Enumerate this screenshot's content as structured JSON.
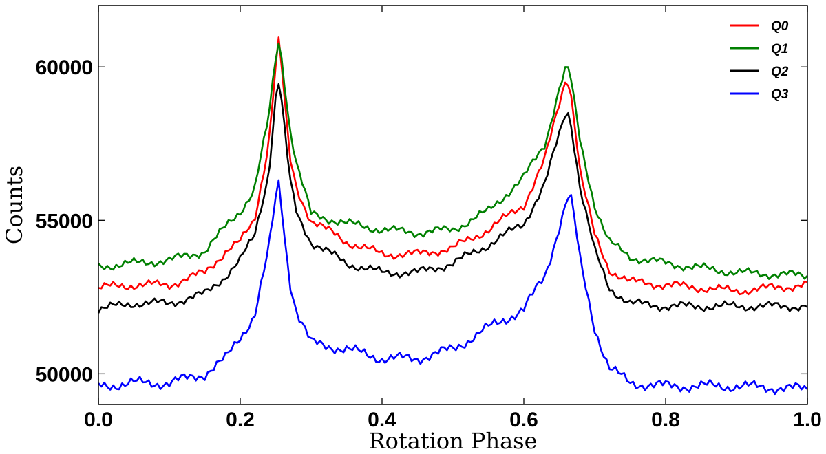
{
  "chart_data": {
    "type": "line",
    "title": "",
    "xlabel": "Rotation Phase",
    "ylabel": "Counts",
    "xlim": [
      0.0,
      1.0
    ],
    "ylim": [
      49000,
      62000
    ],
    "xticks": [
      0.0,
      0.2,
      0.4,
      0.6,
      0.8,
      1.0
    ],
    "xtick_labels": [
      "0.0",
      "0.2",
      "0.4",
      "0.6",
      "0.8",
      "1.0"
    ],
    "yticks": [
      50000,
      55000,
      60000
    ],
    "ytick_labels": [
      "50000",
      "55000",
      "60000"
    ],
    "grid": false,
    "legend_position": "top-right",
    "series": [
      {
        "name": "Q0",
        "color": "#ff0000",
        "x": [
          0.0,
          0.05,
          0.1,
          0.15,
          0.18,
          0.2,
          0.22,
          0.24,
          0.25,
          0.255,
          0.26,
          0.27,
          0.28,
          0.3,
          0.35,
          0.4,
          0.45,
          0.5,
          0.55,
          0.6,
          0.63,
          0.65,
          0.66,
          0.665,
          0.67,
          0.68,
          0.7,
          0.72,
          0.75,
          0.8,
          0.9,
          1.0
        ],
        "y": [
          52800,
          52900,
          52900,
          53300,
          54000,
          54300,
          55000,
          57500,
          60000,
          61000,
          59500,
          57000,
          56000,
          55000,
          54300,
          53900,
          53900,
          54100,
          54700,
          55500,
          57000,
          58800,
          59700,
          59400,
          58500,
          56500,
          54500,
          53400,
          53000,
          52900,
          52700,
          52900
        ]
      },
      {
        "name": "Q1",
        "color": "#008000",
        "x": [
          0.0,
          0.05,
          0.1,
          0.15,
          0.18,
          0.2,
          0.22,
          0.24,
          0.25,
          0.255,
          0.26,
          0.27,
          0.28,
          0.3,
          0.35,
          0.4,
          0.45,
          0.5,
          0.55,
          0.6,
          0.63,
          0.65,
          0.66,
          0.665,
          0.67,
          0.68,
          0.7,
          0.72,
          0.75,
          0.8,
          0.9,
          1.0
        ],
        "y": [
          53500,
          53600,
          53700,
          54000,
          54800,
          55300,
          56000,
          58300,
          60300,
          60900,
          60000,
          58000,
          56800,
          55200,
          54900,
          54700,
          54600,
          54700,
          55300,
          56400,
          57500,
          59300,
          60000,
          59800,
          59000,
          57500,
          55500,
          54300,
          53800,
          53600,
          53300,
          53200
        ]
      },
      {
        "name": "Q2",
        "color": "#000000",
        "x": [
          0.0,
          0.05,
          0.1,
          0.15,
          0.18,
          0.2,
          0.22,
          0.24,
          0.25,
          0.255,
          0.26,
          0.27,
          0.28,
          0.3,
          0.35,
          0.4,
          0.45,
          0.5,
          0.55,
          0.6,
          0.63,
          0.65,
          0.66,
          0.665,
          0.67,
          0.68,
          0.7,
          0.72,
          0.75,
          0.8,
          0.9,
          1.0
        ],
        "y": [
          52100,
          52300,
          52300,
          52600,
          53200,
          53700,
          54500,
          56500,
          59000,
          59600,
          58500,
          56300,
          55200,
          54300,
          53600,
          53300,
          53300,
          53600,
          54200,
          54900,
          56200,
          57800,
          58600,
          58400,
          57600,
          56000,
          54000,
          52800,
          52300,
          52200,
          52200,
          52200
        ]
      },
      {
        "name": "Q3",
        "color": "#0000ff",
        "x": [
          0.0,
          0.05,
          0.1,
          0.15,
          0.18,
          0.2,
          0.22,
          0.24,
          0.25,
          0.255,
          0.26,
          0.27,
          0.28,
          0.3,
          0.35,
          0.4,
          0.45,
          0.5,
          0.55,
          0.6,
          0.63,
          0.65,
          0.66,
          0.665,
          0.67,
          0.68,
          0.7,
          0.72,
          0.75,
          0.8,
          0.9,
          1.0
        ],
        "y": [
          49600,
          49700,
          49700,
          50000,
          50500,
          51200,
          51900,
          54000,
          55700,
          56300,
          55000,
          53000,
          52000,
          51000,
          50800,
          50500,
          50500,
          50800,
          51500,
          52100,
          53200,
          54800,
          55600,
          55900,
          55200,
          53600,
          51500,
          50200,
          49700,
          49600,
          49600,
          49500
        ]
      }
    ]
  }
}
